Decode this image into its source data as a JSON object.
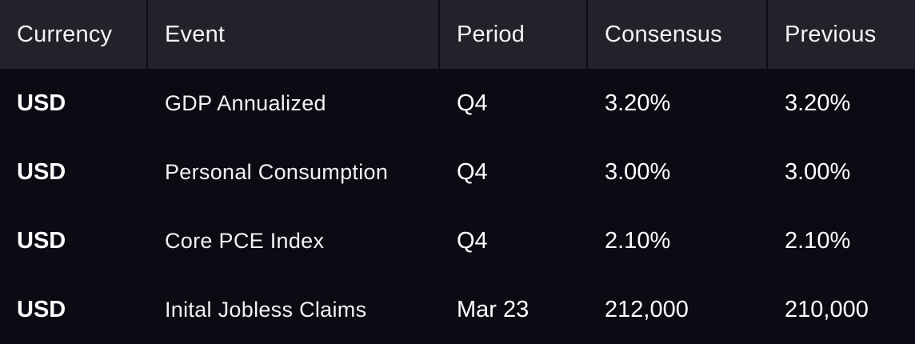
{
  "columns": [
    "Currency",
    "Event",
    "Period",
    "Consensus",
    "Previous"
  ],
  "rows": [
    {
      "currency": "USD",
      "event": "GDP Annualized",
      "period": "Q4",
      "consensus": "3.20%",
      "previous": "3.20%"
    },
    {
      "currency": "USD",
      "event": "Personal Consumption",
      "period": "Q4",
      "consensus": "3.00%",
      "previous": "3.00%"
    },
    {
      "currency": "USD",
      "event": "Core PCE Index",
      "period": "Q4",
      "consensus": "2.10%",
      "previous": "2.10%"
    },
    {
      "currency": "USD",
      "event": "Inital Jobless Claims",
      "period": "Mar 23",
      "consensus": "212,000",
      "previous": "210,000"
    }
  ],
  "colors": {
    "header_bg": "#22222b",
    "body_bg": "#0b0b14",
    "text": "#ffffff"
  }
}
